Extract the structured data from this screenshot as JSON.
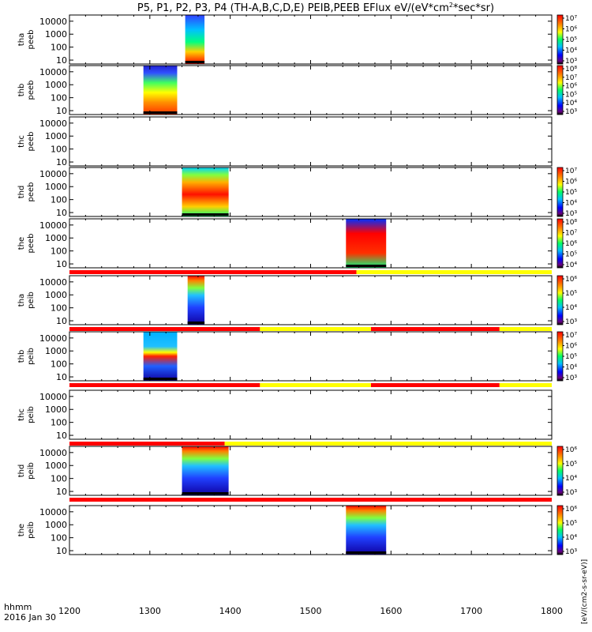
{
  "chart_data": {
    "type": "heatmap",
    "title": "P5, P1, P2, P3, P4 (TH-A,B,C,D,E) PEIB,PEEB EFlux eV/(eV*cm",
    "title_sup": "2",
    "title_tail": "*sec*sr)",
    "time_label": "hhmm",
    "date_label": "2016 Jan 30",
    "x_ticks": [
      "1200",
      "1300",
      "1400",
      "1500",
      "1600",
      "1700",
      "1800"
    ],
    "x_range": [
      1200,
      1800
    ],
    "y_range": [
      5,
      30000
    ],
    "y_scale": "log",
    "y_ticks": [
      "10",
      "100",
      "1000",
      "10000"
    ],
    "colorbar_label_eflux": "eV/(cm2-s-sr-eV)",
    "colorbar_label_full": "[eV/(cm2-s-sr-eV)]",
    "panels": [
      {
        "label1": "tha",
        "label2": "peeb",
        "data": [
          {
            "t0": 1344,
            "t1": 1368
          }
        ],
        "bar": null,
        "cbar": [
          "10⁷",
          "10⁶",
          "10⁵",
          "10⁴",
          "10³"
        ]
      },
      {
        "label1": "thb",
        "label2": "peeb",
        "data": [
          {
            "t0": 1292,
            "t1": 1334
          }
        ],
        "bar": null,
        "cbar": [
          "10⁸",
          "10⁷",
          "10⁶",
          "10⁵",
          "10⁴",
          "10³"
        ]
      },
      {
        "label1": "thc",
        "label2": "peeb",
        "data": [],
        "bar": null,
        "cbar": []
      },
      {
        "label1": "thd",
        "label2": "peeb",
        "data": [
          {
            "t0": 1340,
            "t1": 1398
          }
        ],
        "bar": null,
        "cbar": [
          "10⁷",
          "10⁶",
          "10⁵",
          "10⁴",
          "10³"
        ]
      },
      {
        "label1": "the",
        "label2": "peeb",
        "data": [
          {
            "t0": 1544,
            "t1": 1594
          }
        ],
        "bar": {
          "red": [
            [
              1200,
              1557
            ]
          ],
          "yellow": [
            [
              1557,
              1800
            ]
          ]
        },
        "cbar": [
          "10⁸",
          "10⁷",
          "10⁶",
          "10⁵",
          "10⁴"
        ]
      },
      {
        "label1": "tha",
        "label2": "peib",
        "data": [
          {
            "t0": 1347,
            "t1": 1368
          }
        ],
        "bar": {
          "red": [
            [
              1200,
              1437
            ],
            [
              1575,
              1735
            ]
          ],
          "yellow": [
            [
              1437,
              1575
            ],
            [
              1735,
              1800
            ]
          ]
        },
        "cbar": [
          "10⁶",
          "10⁵",
          "10⁴",
          "10³"
        ]
      },
      {
        "label1": "thb",
        "label2": "peib",
        "data": [
          {
            "t0": 1292,
            "t1": 1334
          }
        ],
        "bar": {
          "red": [
            [
              1200,
              1437
            ],
            [
              1575,
              1735
            ]
          ],
          "yellow": [
            [
              1437,
              1575
            ],
            [
              1735,
              1800
            ]
          ]
        },
        "cbar": [
          "10⁷",
          "10⁶",
          "10⁵",
          "10⁴",
          "10³"
        ]
      },
      {
        "label1": "thc",
        "label2": "peib",
        "data": [],
        "bar": {
          "red": [
            [
              1200,
              1393
            ]
          ],
          "yellow": [
            [
              1393,
              1800
            ]
          ]
        },
        "cbar": []
      },
      {
        "label1": "thd",
        "label2": "peib",
        "data": [
          {
            "t0": 1340,
            "t1": 1398
          }
        ],
        "bar": {
          "red": [
            [
              1200,
              1800
            ]
          ],
          "yellow": []
        },
        "cbar": [
          "10⁶",
          "10⁵",
          "10⁴",
          "10³"
        ]
      },
      {
        "label1": "the",
        "label2": "peib",
        "data": [
          {
            "t0": 1544,
            "t1": 1594
          }
        ],
        "bar": null,
        "cbar": [
          "10⁶",
          "10⁵",
          "10⁴",
          "10³"
        ]
      }
    ],
    "colors": {
      "red": "#ff0000",
      "yellow": "#ffff00"
    }
  }
}
